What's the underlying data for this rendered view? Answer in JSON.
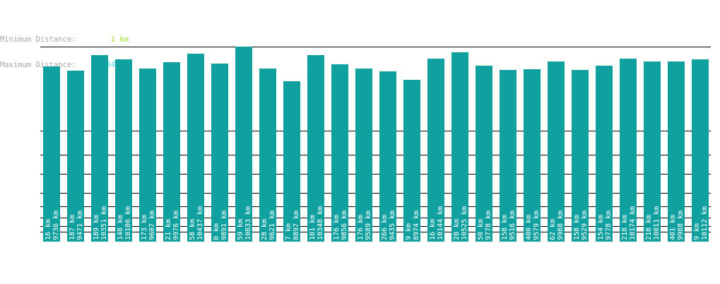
{
  "stats": {
    "min_label": "Minimum Distance:",
    "min_value": "1 km",
    "max_label": "Maximum Distance:",
    "max_value": "10834 km"
  },
  "colors": {
    "bar": "#11a0a0",
    "line": "#000000",
    "label": "#ffffff"
  },
  "chart_data": {
    "type": "bar",
    "ylabel": "",
    "xlabel": "",
    "bars": [
      {
        "upper": "16 km",
        "lower": "9736 km",
        "max_km": 9736,
        "min_km": 16
      },
      {
        "upper": "187 km",
        "lower": "9471 km",
        "max_km": 9471,
        "min_km": 187
      },
      {
        "upper": "189 km",
        "lower": "10351 km",
        "max_km": 10351,
        "min_km": 189
      },
      {
        "upper": "148 km",
        "lower": "10106 km",
        "max_km": 10106,
        "min_km": 148
      },
      {
        "upper": "173 km",
        "lower": "9607 km",
        "max_km": 9607,
        "min_km": 173
      },
      {
        "upper": "21 km",
        "lower": "9976 km",
        "max_km": 9976,
        "min_km": 21
      },
      {
        "upper": "58 km",
        "lower": "10437 km",
        "max_km": 10437,
        "min_km": 58
      },
      {
        "upper": "0 km",
        "lower": "9891 km",
        "max_km": 9891,
        "min_km": 0
      },
      {
        "upper": "59 km",
        "lower": "10833 km",
        "max_km": 10833,
        "min_km": 59
      },
      {
        "upper": "28 km",
        "lower": "9621 km",
        "max_km": 9621,
        "min_km": 28
      },
      {
        "upper": "7 km",
        "lower": "8897 km",
        "max_km": 8897,
        "min_km": 7
      },
      {
        "upper": "101 km",
        "lower": "10348 km",
        "max_km": 10348,
        "min_km": 101
      },
      {
        "upper": "176 km",
        "lower": "9856 km",
        "max_km": 9856,
        "min_km": 176
      },
      {
        "upper": "176 km",
        "lower": "9589 km",
        "max_km": 9589,
        "min_km": 176
      },
      {
        "upper": "266 km",
        "lower": "9435 km",
        "max_km": 9435,
        "min_km": 266
      },
      {
        "upper": "9 km",
        "lower": "8974 km",
        "max_km": 8974,
        "min_km": 9
      },
      {
        "upper": "16 km",
        "lower": "10144 km",
        "max_km": 10144,
        "min_km": 16
      },
      {
        "upper": "28 km",
        "lower": "10525 km",
        "max_km": 10525,
        "min_km": 28
      },
      {
        "upper": "50 km",
        "lower": "9778 km",
        "max_km": 9778,
        "min_km": 50
      },
      {
        "upper": "158 km",
        "lower": "9516 km",
        "max_km": 9516,
        "min_km": 158
      },
      {
        "upper": "400 km",
        "lower": "9579 km",
        "max_km": 9579,
        "min_km": 400
      },
      {
        "upper": "62 km",
        "lower": "9988 km",
        "max_km": 9988,
        "min_km": 62
      },
      {
        "upper": "158 km",
        "lower": "9529 km",
        "max_km": 9529,
        "min_km": 158
      },
      {
        "upper": "154 km",
        "lower": "9778 km",
        "max_km": 9778,
        "min_km": 154
      },
      {
        "upper": "218 km",
        "lower": "10174 km",
        "max_km": 10174,
        "min_km": 218
      },
      {
        "upper": "218 km",
        "lower": "10011 km",
        "max_km": 10011,
        "min_km": 218
      },
      {
        "upper": "401 km",
        "lower": "9988 km",
        "max_km": 9988,
        "min_km": 401
      },
      {
        "upper": "9 km",
        "lower": "10112 km",
        "max_km": 10112,
        "min_km": 9
      }
    ]
  }
}
